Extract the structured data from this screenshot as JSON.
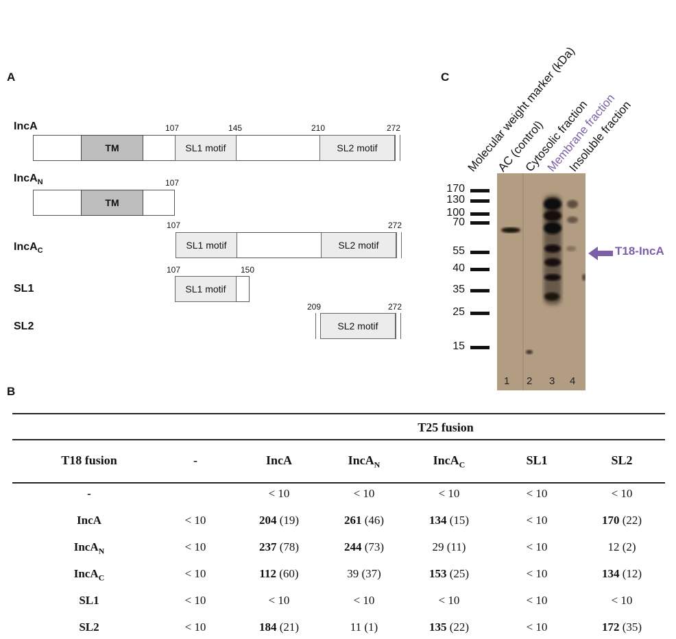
{
  "panels": {
    "a": "A",
    "b": "B",
    "c": "C"
  },
  "panel_a": {
    "rows": [
      {
        "name": "IncA",
        "sub": ""
      },
      {
        "name": "IncA",
        "sub": "N"
      },
      {
        "name": "IncA",
        "sub": "C"
      },
      {
        "name": "SL1",
        "sub": ""
      },
      {
        "name": "SL2",
        "sub": ""
      }
    ],
    "tm_label": "TM",
    "sl1_label": "SL1 motif",
    "sl2_label": "SL2 motif",
    "positions": {
      "p107": "107",
      "p145": "145",
      "p150": "150",
      "p209": "209",
      "p210": "210",
      "p272": "272"
    }
  },
  "panel_c": {
    "lane_labels": [
      "Molecular weight marker (kDa)",
      "AC (control)",
      "Cytosolic fraction",
      "Membrane fraction",
      "Insoluble fraction"
    ],
    "lane_label_colors": [
      "#111111",
      "#111111",
      "#111111",
      "#7b5fa8",
      "#111111"
    ],
    "markers": [
      "170",
      "130",
      "100",
      "70",
      "55",
      "40",
      "35",
      "25",
      "15"
    ],
    "lane_numbers": [
      "1",
      "2",
      "3",
      "4"
    ],
    "arrow_label": "T18-IncA",
    "arrow_color": "#7b5fa8"
  },
  "panel_b": {
    "t25_header": "T25 fusion",
    "t18_header": "T18 fusion",
    "columns": [
      {
        "name": "-",
        "sub": ""
      },
      {
        "name": "IncA",
        "sub": ""
      },
      {
        "name": "IncA",
        "sub": "N"
      },
      {
        "name": "IncA",
        "sub": "C"
      },
      {
        "name": "SL1",
        "sub": ""
      },
      {
        "name": "SL2",
        "sub": ""
      }
    ],
    "rows": [
      {
        "name": "-",
        "sub": "",
        "cells": [
          {
            "b": "",
            "r": ""
          },
          {
            "b": "",
            "r": "< 10"
          },
          {
            "b": "",
            "r": "< 10"
          },
          {
            "b": "",
            "r": "< 10"
          },
          {
            "b": "",
            "r": "< 10"
          },
          {
            "b": "",
            "r": "< 10"
          }
        ]
      },
      {
        "name": "IncA",
        "sub": "",
        "cells": [
          {
            "b": "",
            "r": "< 10"
          },
          {
            "b": "204",
            "r": " (19)"
          },
          {
            "b": "261",
            "r": " (46)"
          },
          {
            "b": "134",
            "r": " (15)"
          },
          {
            "b": "",
            "r": "< 10"
          },
          {
            "b": "170",
            "r": " (22)"
          }
        ]
      },
      {
        "name": "IncA",
        "sub": "N",
        "cells": [
          {
            "b": "",
            "r": "< 10"
          },
          {
            "b": "237",
            "r": " (78)"
          },
          {
            "b": "244",
            "r": " (73)"
          },
          {
            "b": "",
            "r": "29 (11)"
          },
          {
            "b": "",
            "r": "< 10"
          },
          {
            "b": "",
            "r": "12 (2)"
          }
        ]
      },
      {
        "name": "IncA",
        "sub": "C",
        "cells": [
          {
            "b": "",
            "r": "< 10"
          },
          {
            "b": "112",
            "r": " (60)"
          },
          {
            "b": "",
            "r": "39 (37)"
          },
          {
            "b": "153",
            "r": " (25)"
          },
          {
            "b": "",
            "r": "< 10"
          },
          {
            "b": "134",
            "r": " (12)"
          }
        ]
      },
      {
        "name": "SL1",
        "sub": "",
        "cells": [
          {
            "b": "",
            "r": "< 10"
          },
          {
            "b": "",
            "r": "< 10"
          },
          {
            "b": "",
            "r": "< 10"
          },
          {
            "b": "",
            "r": "< 10"
          },
          {
            "b": "",
            "r": "< 10"
          },
          {
            "b": "",
            "r": "< 10"
          }
        ]
      },
      {
        "name": "SL2",
        "sub": "",
        "cells": [
          {
            "b": "",
            "r": "< 10"
          },
          {
            "b": "184",
            "r": " (21)"
          },
          {
            "b": "",
            "r": "11 (1)"
          },
          {
            "b": "135",
            "r": " (22)"
          },
          {
            "b": "",
            "r": "< 10"
          },
          {
            "b": "172",
            "r": " (35)"
          }
        ]
      }
    ]
  }
}
